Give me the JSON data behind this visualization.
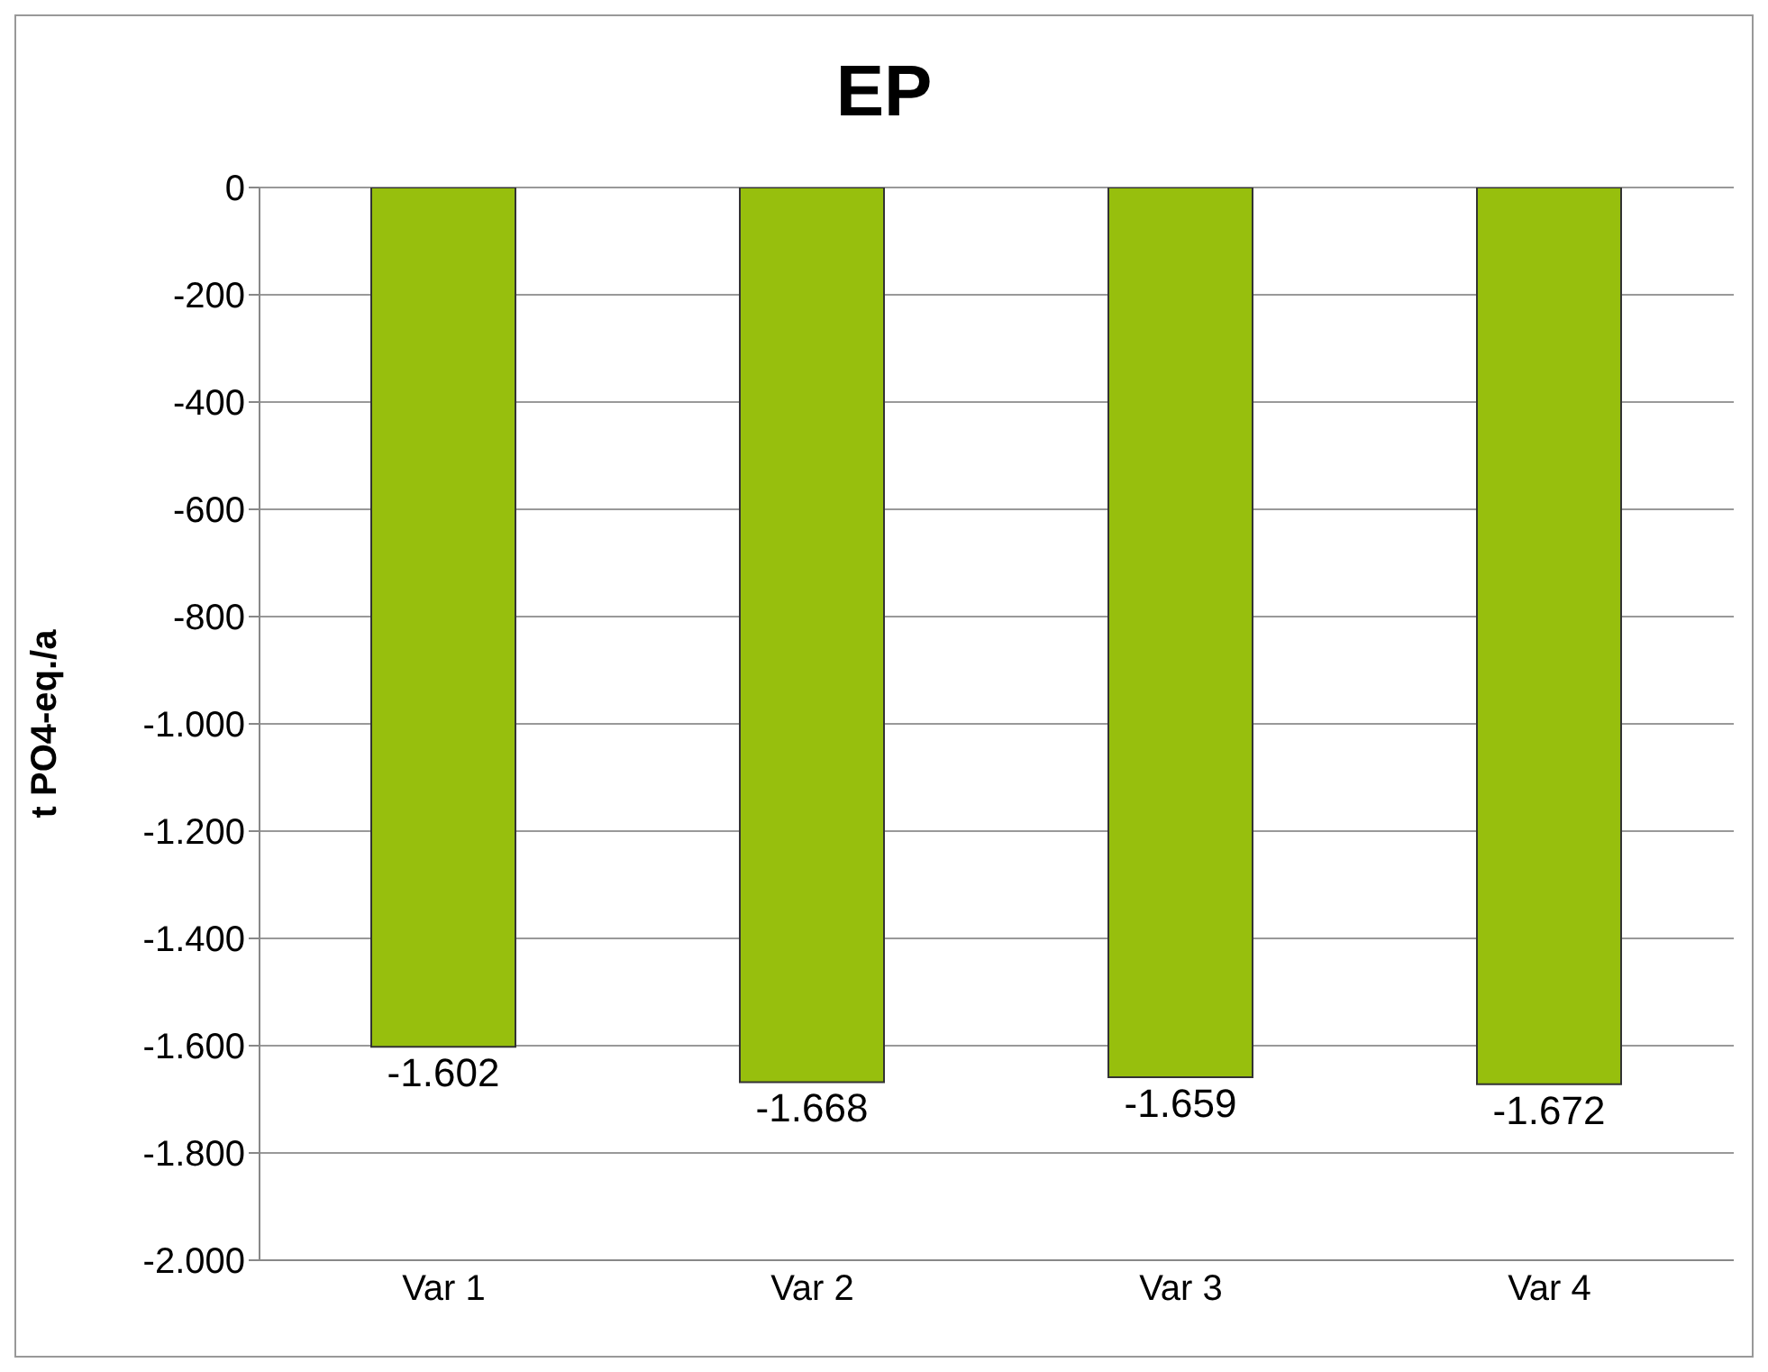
{
  "chart_data": {
    "type": "bar",
    "title": "EP",
    "ylabel": "t PO4-eq./a",
    "categories": [
      "Var 1",
      "Var 2",
      "Var 3",
      "Var 4"
    ],
    "values": [
      -1602,
      -1668,
      -1659,
      -1672
    ],
    "value_labels": [
      "-1.602",
      "-1.668",
      "-1.659",
      "-1.672"
    ],
    "color": "#97bf0d",
    "ylim": [
      -2000,
      0
    ],
    "yticks": [
      0,
      -200,
      -400,
      -600,
      -800,
      {
        "value": -1000,
        "label": "-1.000"
      },
      {
        "value": -1200,
        "label": "-1.200"
      },
      {
        "value": -1400,
        "label": "-1.400"
      },
      {
        "value": -1600,
        "label": "-1.600"
      },
      {
        "value": -1800,
        "label": "-1.800"
      },
      {
        "value": -2000,
        "label": "-2.000"
      }
    ],
    "grid": "y",
    "legend": false
  }
}
